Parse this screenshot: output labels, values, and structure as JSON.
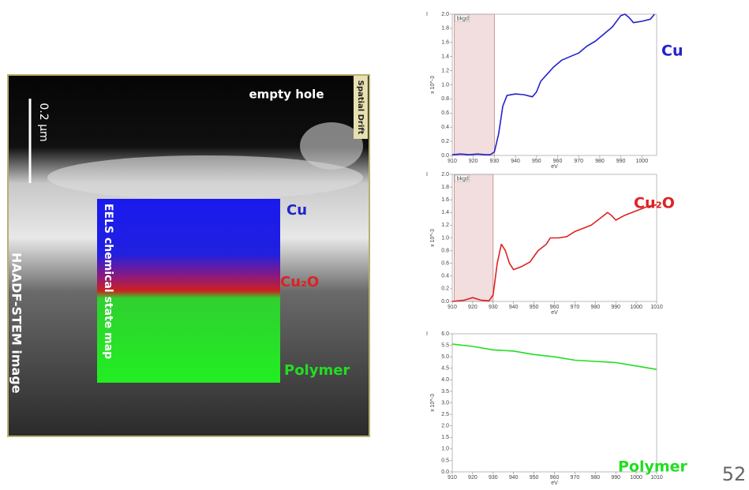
{
  "image": {
    "top_label": "empty hole",
    "drift_label": "Spatial Drift",
    "scale_label": "0.2 µm",
    "map_label": "EELS chemical state map",
    "image_label": "HAADF-STEM image",
    "phases": [
      "Cu",
      "Cu₂O",
      "Polymer"
    ]
  },
  "page_number": "52",
  "chart_data": [
    {
      "type": "line",
      "corner_label": "I",
      "ylabel": "x 10^-3",
      "xlabel": "eV",
      "annotation": "bkgd",
      "bkgd_range": [
        911,
        930
      ],
      "x": [
        910,
        914,
        918,
        922,
        926,
        928,
        930,
        932,
        934,
        936,
        940,
        944,
        948,
        950,
        952,
        955,
        958,
        962,
        966,
        970,
        974,
        978,
        982,
        986,
        990,
        992,
        994,
        996,
        1000,
        1004,
        1006
      ],
      "series": [
        {
          "name": "Cu",
          "color": "#2222cc",
          "values": [
            0.01,
            0.02,
            0.01,
            0.02,
            0.01,
            0.01,
            0.05,
            0.3,
            0.7,
            0.85,
            0.87,
            0.86,
            0.83,
            0.9,
            1.05,
            1.15,
            1.25,
            1.35,
            1.4,
            1.45,
            1.55,
            1.62,
            1.72,
            1.82,
            1.98,
            2.0,
            1.95,
            1.88,
            1.9,
            1.93,
            2.0
          ]
        }
      ],
      "xlim": [
        910,
        1007
      ],
      "ylim": [
        0,
        2.0
      ],
      "xticks": [
        910,
        920,
        930,
        940,
        950,
        960,
        970,
        980,
        990,
        1000
      ],
      "yticks": [
        {
          "value": 0,
          "label": "0.0"
        },
        0.2,
        0.4,
        0.6,
        0.8,
        {
          "value": 1,
          "label": "1.0"
        },
        1.2,
        1.4,
        1.6,
        1.8,
        {
          "value": 2,
          "label": "2.0"
        }
      ]
    },
    {
      "type": "line",
      "corner_label": "I",
      "ylabel": "x 10^-3",
      "xlabel": "eV",
      "annotation": "bkgd",
      "bkgd_range": [
        911,
        930
      ],
      "x": [
        910,
        916,
        920,
        924,
        928,
        930,
        932,
        934,
        936,
        938,
        940,
        944,
        948,
        952,
        956,
        958,
        962,
        966,
        970,
        974,
        978,
        982,
        986,
        988,
        990,
        994,
        998,
        1002,
        1006,
        1010
      ],
      "series": [
        {
          "name": "Cu₂O",
          "color": "#dd2222",
          "values": [
            0,
            0.02,
            0.06,
            0.02,
            0.01,
            0.1,
            0.6,
            0.9,
            0.8,
            0.6,
            0.5,
            0.55,
            0.62,
            0.8,
            0.9,
            1.0,
            1.0,
            1.02,
            1.1,
            1.15,
            1.2,
            1.3,
            1.4,
            1.35,
            1.28,
            1.35,
            1.4,
            1.45,
            1.5,
            1.52
          ]
        }
      ],
      "xlim": [
        910,
        1010
      ],
      "ylim": [
        0,
        2.0
      ],
      "xticks": [
        910,
        920,
        930,
        940,
        950,
        960,
        970,
        980,
        990,
        1000,
        1010
      ],
      "yticks": [
        {
          "value": 0,
          "label": "0.0"
        },
        0.2,
        0.4,
        0.6,
        0.8,
        {
          "value": 1,
          "label": "1.0"
        },
        1.2,
        1.4,
        1.6,
        1.8,
        {
          "value": 2,
          "label": "2.0"
        }
      ]
    },
    {
      "type": "line",
      "corner_label": "I",
      "ylabel": "x 10^-3",
      "xlabel": "eV",
      "x": [
        910,
        920,
        930,
        940,
        950,
        960,
        970,
        980,
        990,
        1000,
        1010
      ],
      "series": [
        {
          "name": "Polymer",
          "color": "#22dd22",
          "values": [
            5.55,
            5.45,
            5.3,
            5.25,
            5.1,
            5.0,
            4.85,
            4.8,
            4.75,
            4.6,
            4.45
          ]
        }
      ],
      "xlim": [
        910,
        1010
      ],
      "ylim": [
        0,
        6.0
      ],
      "xticks": [
        910,
        920,
        930,
        940,
        950,
        960,
        970,
        980,
        990,
        1000,
        1010
      ],
      "yticks": [
        {
          "value": 0,
          "label": "0.0"
        },
        0.5,
        {
          "value": 1,
          "label": "1.0"
        },
        1.5,
        {
          "value": 2,
          "label": "2.0"
        },
        2.5,
        {
          "value": 3,
          "label": "3.0"
        },
        3.5,
        {
          "value": 4,
          "label": "4.0"
        },
        4.5,
        {
          "value": 5,
          "label": "5.0"
        },
        5.5,
        {
          "value": 6,
          "label": "6.0"
        }
      ]
    }
  ]
}
